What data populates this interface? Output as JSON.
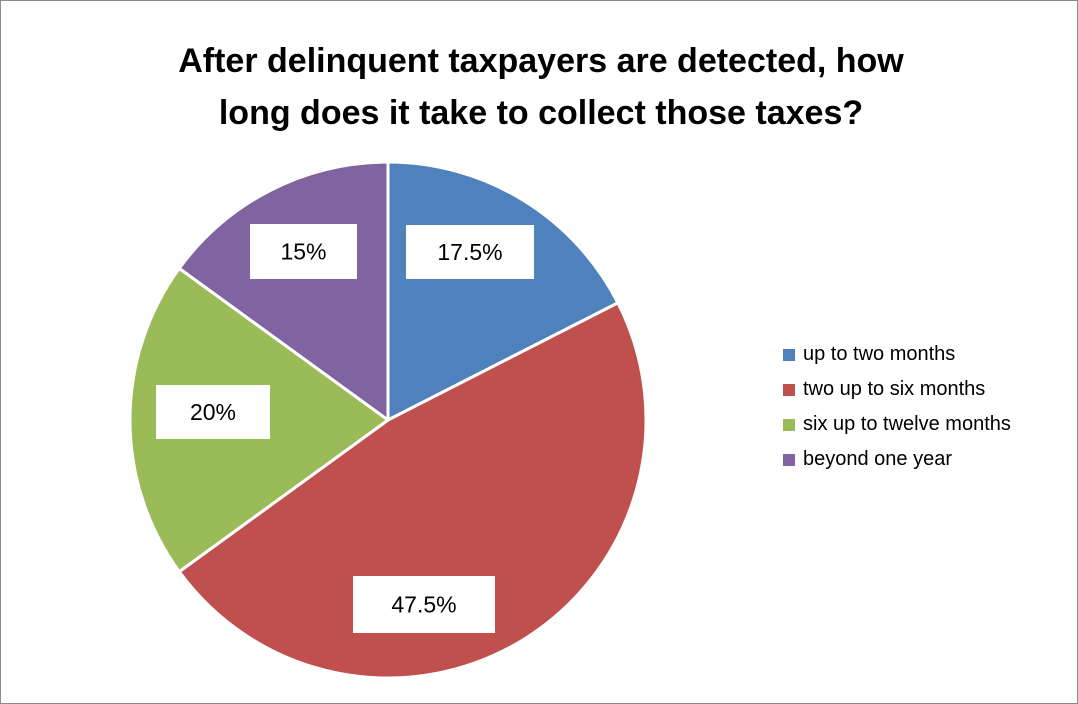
{
  "chart_data": {
    "type": "pie",
    "title_lines": [
      "After delinquent taxpayers are detected, how",
      "long does it take to collect those taxes?"
    ],
    "categories": [
      "up to two months",
      "two up to six months",
      "six up to twelve months",
      "beyond one year"
    ],
    "values": [
      17.5,
      47.5,
      20,
      15
    ],
    "data_labels": [
      "17.5%",
      "47.5%",
      "20%",
      "15%"
    ],
    "colors": [
      "#4f81bd",
      "#c0504d",
      "#9bbb59",
      "#8064a2"
    ],
    "legend_position": "right"
  }
}
